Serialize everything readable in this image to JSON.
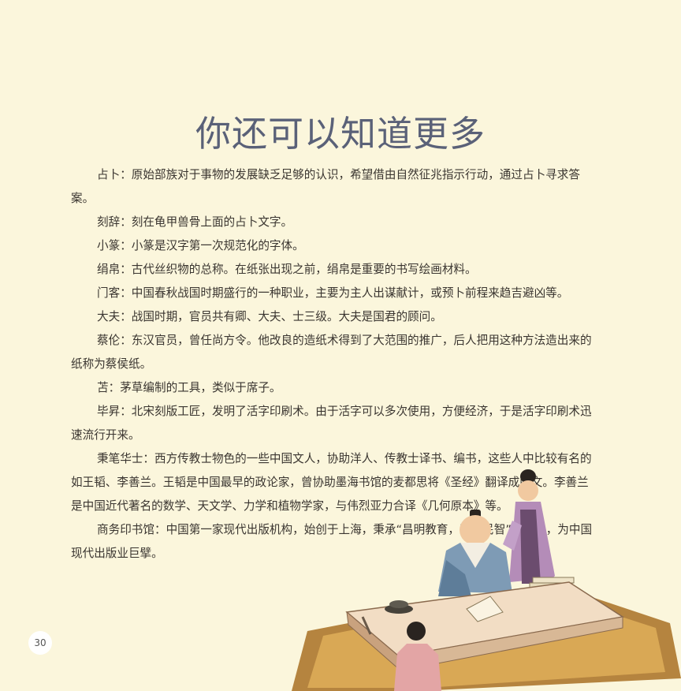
{
  "page": {
    "title": "你还可以知道更多",
    "page_number": "30"
  },
  "entries": [
    {
      "term": "占卜：",
      "text": "原始部族对于事物的发展缺乏足够的认识，希望借由自然征兆指示行动，通过占卜寻求答案。"
    },
    {
      "term": "刻辞：",
      "text": "刻在龟甲兽骨上面的占卜文字。"
    },
    {
      "term": "小篆：",
      "text": "小篆是汉字第一次规范化的字体。"
    },
    {
      "term": "绢帛：",
      "text": "古代丝织物的总称。在纸张出现之前，绢帛是重要的书写绘画材料。"
    },
    {
      "term": "门客：",
      "text": "中国春秋战国时期盛行的一种职业，主要为主人出谋献计，或预卜前程来趋吉避凶等。"
    },
    {
      "term": "大夫：",
      "text": "战国时期，官员共有卿、大夫、士三级。大夫是国君的顾问。"
    },
    {
      "term": "蔡伦：",
      "text": "东汉官员，曾任尚方令。他改良的造纸术得到了大范围的推广，后人把用这种方法造出来的纸称为蔡侯纸。"
    },
    {
      "term": "苫：",
      "text": "茅草编制的工具，类似于席子。"
    },
    {
      "term": "毕昇：",
      "text": "北宋刻版工匠，发明了活字印刷术。由于活字可以多次使用，方便经济，于是活字印刷术迅速流行开来。"
    },
    {
      "term": "秉笔华士：",
      "text": "西方传教士物色的一些中国文人，协助洋人、传教士译书、编书，这些人中比较有名的如王韬、李善兰。王韬是中国最早的政论家，曾协助墨海书馆的麦都思将《圣经》翻译成中文。李善兰是中国近代著名的数学、天文学、力学和植物学家，与伟烈亚力合译《几何原本》等。"
    },
    {
      "term": "商务印书馆：",
      "text": "中国第一家现代出版机构，始创于上海，秉承“昌明教育，开启民智”的宗旨，为中国现代出版业巨擘。"
    }
  ]
}
